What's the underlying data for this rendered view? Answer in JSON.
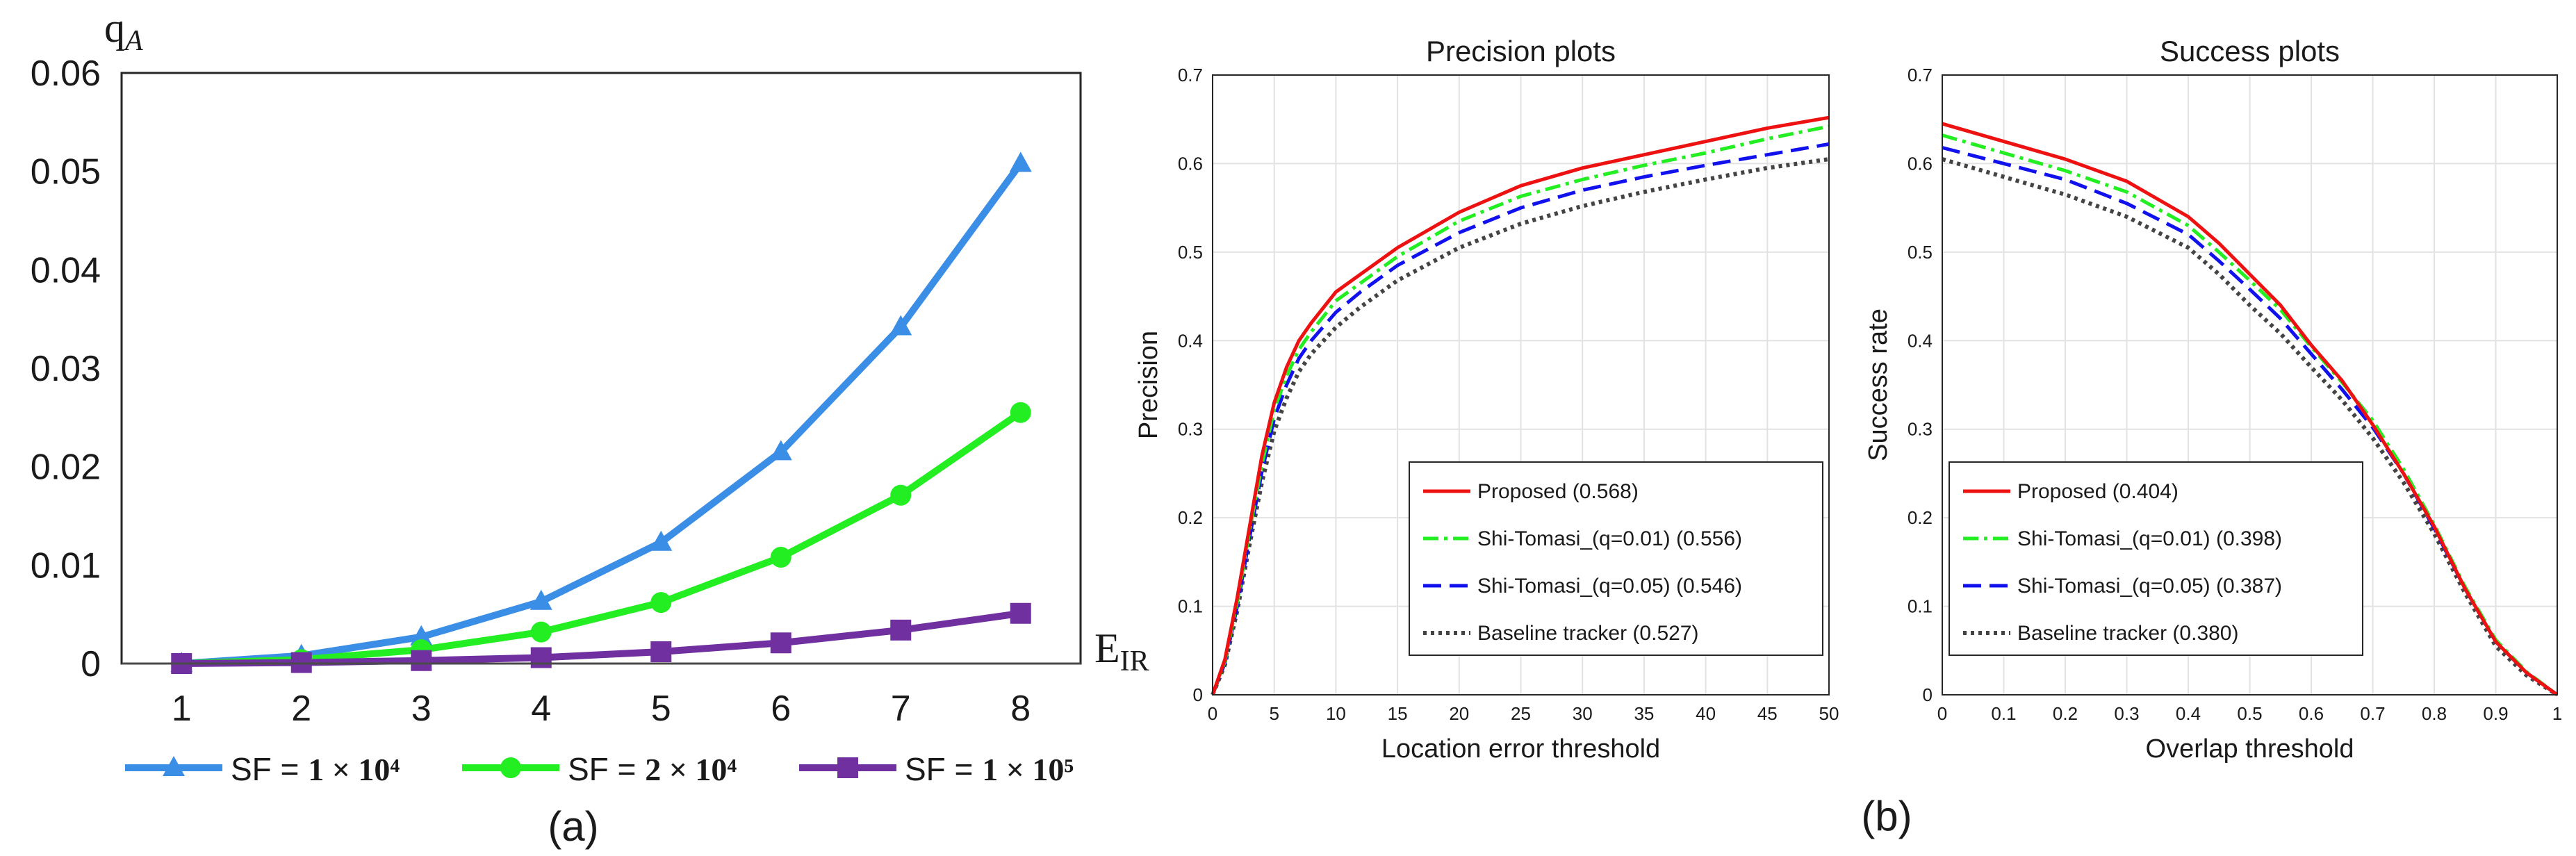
{
  "panel_labels": {
    "a": "(a)",
    "b": "(b)"
  },
  "colors": {
    "sf1": "#3a8ee6",
    "sf2": "#22ee22",
    "sf3": "#7030a0",
    "proposed": "#ee1111",
    "shi001": "#22ee22",
    "shi005": "#1111ee",
    "baseline": "#444444",
    "grid": "#e2e2e2",
    "axis": "#262626"
  },
  "chart_data": [
    {
      "type": "line",
      "xlabel": "E",
      "xlabel_sub": "IR",
      "ylabel": "q",
      "ylabel_sub": "A",
      "x": [
        1,
        2,
        3,
        4,
        5,
        6,
        7,
        8
      ],
      "xticks": [
        "1",
        "2",
        "3",
        "4",
        "5",
        "6",
        "7",
        "8"
      ],
      "yticks": [
        "0",
        "0.01",
        "0.02",
        "0.03",
        "0.04",
        "0.05",
        "0.06"
      ],
      "ylim": [
        0,
        0.06
      ],
      "grid": false,
      "legend_position": "bottom",
      "series": [
        {
          "name": "SF = 1 × 10⁴",
          "legend_prefix": "SF = ",
          "legend_value": "1 × 10⁴",
          "marker": "triangle",
          "color_key": "sf1",
          "values": [
            0.0,
            0.0008,
            0.0027,
            0.0063,
            0.0123,
            0.0215,
            0.0342,
            0.0508
          ]
        },
        {
          "name": "SF = 2 × 10⁴",
          "legend_prefix": "SF = ",
          "legend_value": "2 × 10⁴",
          "marker": "circle",
          "color_key": "sf2",
          "values": [
            0.0,
            0.0004,
            0.0014,
            0.0032,
            0.0062,
            0.0108,
            0.0171,
            0.0255
          ]
        },
        {
          "name": "SF = 1 × 10⁵",
          "legend_prefix": "SF = ",
          "legend_value": "1 × 10⁵",
          "marker": "square",
          "color_key": "sf3",
          "values": [
            0.0,
            0.0001,
            0.0003,
            0.0006,
            0.0012,
            0.0021,
            0.0034,
            0.0051
          ]
        }
      ]
    },
    {
      "type": "line",
      "title": "Precision plots",
      "xlabel": "Location error threshold",
      "ylabel": "Precision",
      "xlim": [
        0,
        50
      ],
      "ylim": [
        0,
        0.7
      ],
      "xticks": [
        0,
        5,
        10,
        15,
        20,
        25,
        30,
        35,
        40,
        45,
        50
      ],
      "yticks": [
        0,
        0.1,
        0.2,
        0.3,
        0.4,
        0.5,
        0.6,
        0.7
      ],
      "grid": true,
      "legend_position": "bottom-right",
      "series": [
        {
          "name": "Proposed (0.568)",
          "color_key": "proposed",
          "dash": "solid",
          "x": [
            0,
            1,
            2,
            3,
            4,
            5,
            6,
            7,
            8,
            10,
            12,
            15,
            20,
            25,
            30,
            35,
            40,
            45,
            50
          ],
          "y": [
            0,
            0.04,
            0.11,
            0.19,
            0.27,
            0.33,
            0.37,
            0.4,
            0.42,
            0.455,
            0.475,
            0.505,
            0.545,
            0.575,
            0.595,
            0.61,
            0.625,
            0.64,
            0.652
          ]
        },
        {
          "name": "Shi-Tomasi_(q=0.01) (0.556)",
          "color_key": "shi001",
          "dash": "dashdot",
          "x": [
            0,
            1,
            2,
            3,
            4,
            5,
            6,
            7,
            8,
            10,
            12,
            15,
            20,
            25,
            30,
            35,
            40,
            45,
            50
          ],
          "y": [
            0,
            0.038,
            0.105,
            0.185,
            0.26,
            0.322,
            0.36,
            0.39,
            0.41,
            0.445,
            0.465,
            0.495,
            0.535,
            0.563,
            0.582,
            0.598,
            0.612,
            0.628,
            0.642
          ]
        },
        {
          "name": "Shi-Tomasi_(q=0.05) (0.546)",
          "color_key": "shi005",
          "dash": "dashed",
          "x": [
            0,
            1,
            2,
            3,
            4,
            5,
            6,
            7,
            8,
            10,
            12,
            15,
            20,
            25,
            30,
            35,
            40,
            45,
            50
          ],
          "y": [
            0,
            0.036,
            0.1,
            0.178,
            0.252,
            0.312,
            0.35,
            0.38,
            0.4,
            0.432,
            0.455,
            0.485,
            0.522,
            0.55,
            0.57,
            0.585,
            0.598,
            0.61,
            0.622
          ]
        },
        {
          "name": "Baseline tracker (0.527)",
          "color_key": "baseline",
          "dash": "dotted",
          "x": [
            0,
            1,
            2,
            3,
            4,
            5,
            6,
            7,
            8,
            10,
            12,
            15,
            20,
            25,
            30,
            35,
            40,
            45,
            50
          ],
          "y": [
            0,
            0.034,
            0.095,
            0.17,
            0.24,
            0.298,
            0.335,
            0.365,
            0.385,
            0.415,
            0.438,
            0.468,
            0.505,
            0.532,
            0.552,
            0.568,
            0.582,
            0.595,
            0.605
          ]
        }
      ]
    },
    {
      "type": "line",
      "title": "Success plots",
      "xlabel": "Overlap threshold",
      "ylabel": "Success rate",
      "xlim": [
        0,
        1
      ],
      "ylim": [
        0,
        0.7
      ],
      "xticks": [
        0,
        0.1,
        0.2,
        0.3,
        0.4,
        0.5,
        0.6,
        0.7,
        0.8,
        0.9,
        1
      ],
      "yticks": [
        0,
        0.1,
        0.2,
        0.3,
        0.4,
        0.5,
        0.6,
        0.7
      ],
      "grid": true,
      "legend_position": "bottom-left",
      "series": [
        {
          "name": "Proposed (0.404)",
          "color_key": "proposed",
          "dash": "solid",
          "x": [
            0,
            0.1,
            0.2,
            0.3,
            0.4,
            0.45,
            0.5,
            0.55,
            0.6,
            0.65,
            0.7,
            0.75,
            0.8,
            0.85,
            0.9,
            0.95,
            1.0
          ],
          "y": [
            0.645,
            0.625,
            0.605,
            0.58,
            0.54,
            0.51,
            0.475,
            0.44,
            0.395,
            0.355,
            0.305,
            0.25,
            0.19,
            0.12,
            0.06,
            0.025,
            0.0
          ]
        },
        {
          "name": "Shi-Tomasi_(q=0.01) (0.398)",
          "color_key": "shi001",
          "dash": "dashdot",
          "x": [
            0,
            0.1,
            0.2,
            0.3,
            0.4,
            0.45,
            0.5,
            0.55,
            0.6,
            0.65,
            0.7,
            0.75,
            0.8,
            0.85,
            0.9,
            0.95,
            1.0
          ],
          "y": [
            0.632,
            0.612,
            0.592,
            0.568,
            0.53,
            0.5,
            0.468,
            0.435,
            0.393,
            0.353,
            0.31,
            0.255,
            0.192,
            0.122,
            0.062,
            0.026,
            0.0
          ]
        },
        {
          "name": "Shi-Tomasi_(q=0.05) (0.387)",
          "color_key": "shi005",
          "dash": "dashed",
          "x": [
            0,
            0.1,
            0.2,
            0.3,
            0.4,
            0.45,
            0.5,
            0.55,
            0.6,
            0.65,
            0.7,
            0.75,
            0.8,
            0.85,
            0.9,
            0.95,
            1.0
          ],
          "y": [
            0.618,
            0.6,
            0.582,
            0.555,
            0.52,
            0.49,
            0.458,
            0.425,
            0.385,
            0.345,
            0.302,
            0.25,
            0.188,
            0.12,
            0.06,
            0.025,
            0.0
          ]
        },
        {
          "name": "Baseline tracker (0.380)",
          "color_key": "baseline",
          "dash": "dotted",
          "x": [
            0,
            0.1,
            0.2,
            0.3,
            0.4,
            0.45,
            0.5,
            0.55,
            0.6,
            0.65,
            0.7,
            0.75,
            0.8,
            0.85,
            0.9,
            0.95,
            1.0
          ],
          "y": [
            0.605,
            0.585,
            0.565,
            0.54,
            0.505,
            0.475,
            0.44,
            0.408,
            0.37,
            0.333,
            0.29,
            0.24,
            0.182,
            0.115,
            0.055,
            0.022,
            0.0
          ]
        }
      ]
    }
  ]
}
